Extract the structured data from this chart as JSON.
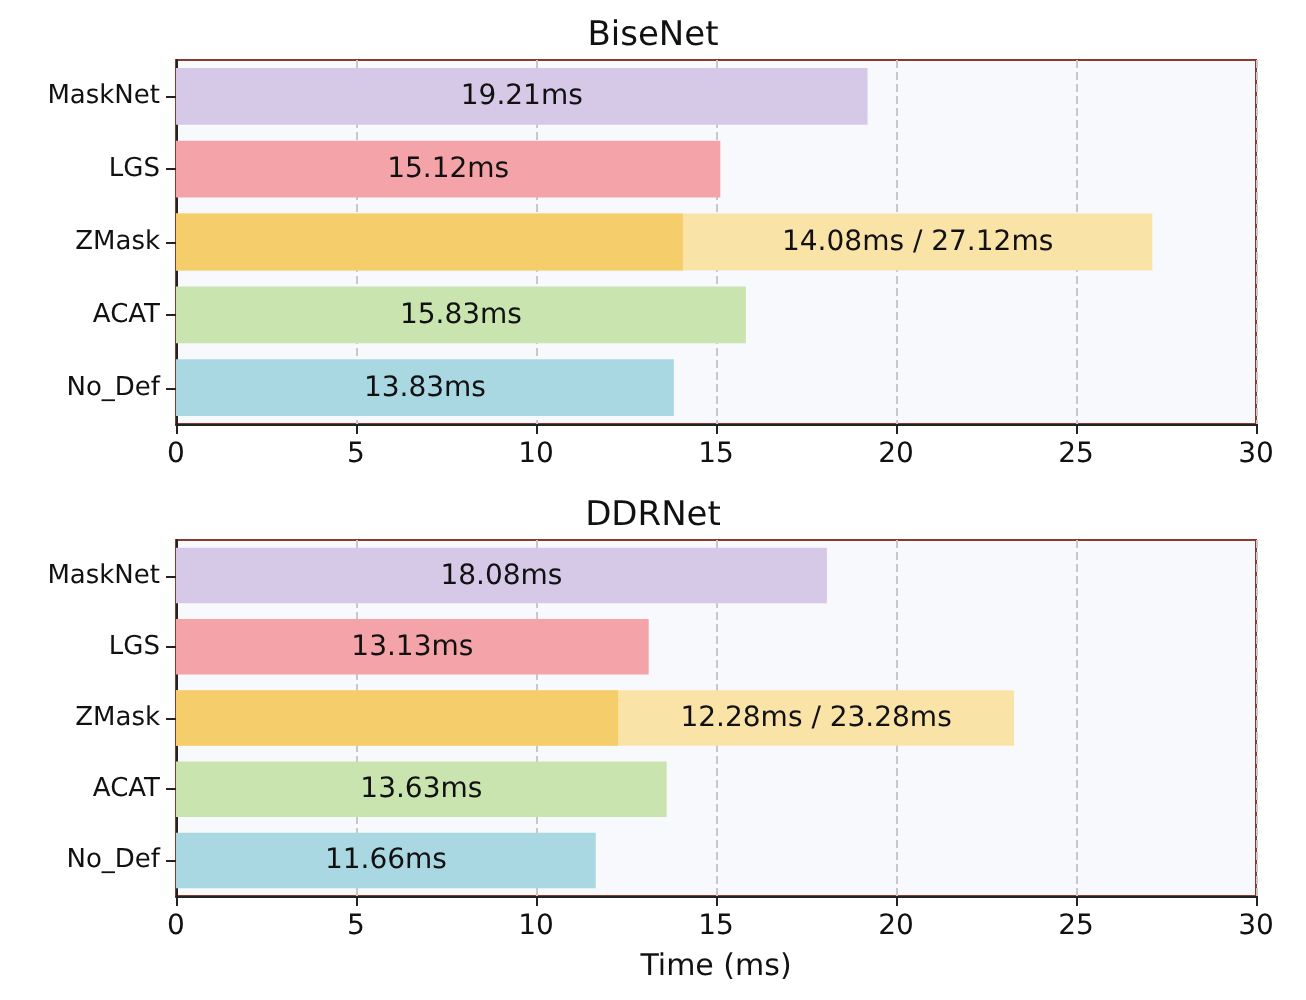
{
  "chart_data": [
    {
      "type": "bar",
      "title": "BiseNet",
      "orientation": "horizontal",
      "categories": [
        "MaskNet",
        "LGS",
        "ZMask",
        "ACAT",
        "No_Def"
      ],
      "series": [
        {
          "colors": [
            "#d6c9e8",
            "#f4a3a8",
            "#f6cd6b",
            "#c9e4ae",
            "#a9d8e3"
          ],
          "values": [
            19.21,
            15.12,
            14.08,
            15.83,
            13.83
          ],
          "value_labels": [
            "19.21ms",
            "15.12ms",
            null,
            "15.83ms",
            "13.83ms"
          ]
        },
        {
          "colors": [
            "#d6c9e8",
            "#f4a3a8",
            "#fae3a6",
            "#c9e4ae",
            "#a9d8e3"
          ],
          "values": [
            null,
            null,
            27.12,
            null,
            null
          ],
          "value_labels": [
            null,
            null,
            "14.08ms / 27.12ms",
            null,
            null
          ]
        }
      ],
      "xlim": [
        0,
        30
      ],
      "xticks": [
        0,
        5,
        10,
        15,
        20,
        25,
        30
      ],
      "grid": "x"
    },
    {
      "type": "bar",
      "title": "DDRNet",
      "xlabel": "Time (ms)",
      "orientation": "horizontal",
      "categories": [
        "MaskNet",
        "LGS",
        "ZMask",
        "ACAT",
        "No_Def"
      ],
      "series": [
        {
          "colors": [
            "#d6c9e8",
            "#f4a3a8",
            "#f6cd6b",
            "#c9e4ae",
            "#a9d8e3"
          ],
          "values": [
            18.08,
            13.13,
            12.28,
            13.63,
            11.66
          ],
          "value_labels": [
            "18.08ms",
            "13.13ms",
            null,
            "13.63ms",
            "11.66ms"
          ]
        },
        {
          "colors": [
            "#d6c9e8",
            "#f4a3a8",
            "#fae3a6",
            "#c9e4ae",
            "#a9d8e3"
          ],
          "values": [
            null,
            null,
            23.28,
            null,
            null
          ],
          "value_labels": [
            null,
            null,
            "12.28ms / 23.28ms",
            null,
            null
          ]
        }
      ],
      "xlim": [
        0,
        30
      ],
      "xticks": [
        0,
        5,
        10,
        15,
        20,
        25,
        30
      ],
      "grid": "x"
    }
  ]
}
